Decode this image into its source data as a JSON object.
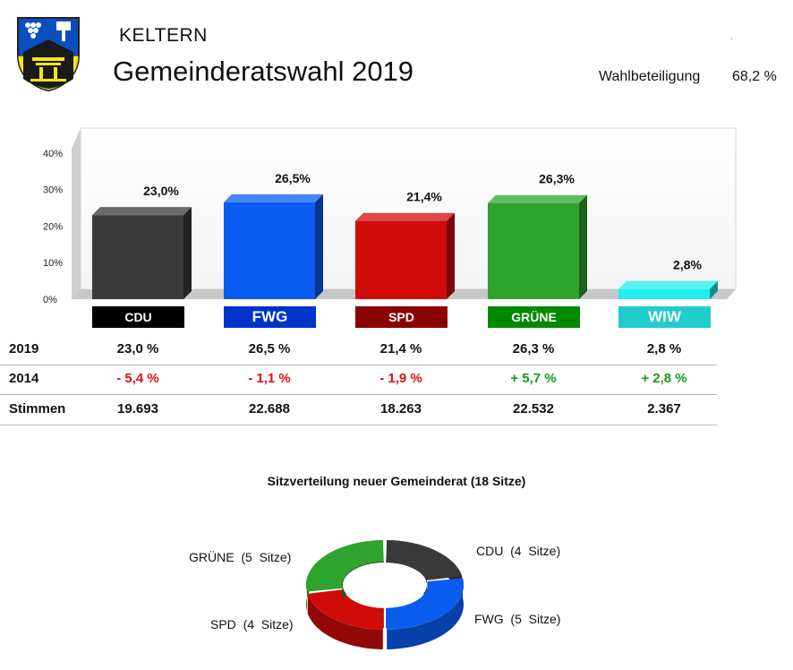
{
  "header": {
    "town": "KELTERN",
    "title": "Gemeinderatswahl 2019",
    "turnout_label": "Wahlbeteiligung",
    "turnout_value": "68,2 %",
    "dot": "."
  },
  "chart_data": [
    {
      "type": "bar",
      "categories": [
        "CDU",
        "FWG",
        "SPD",
        "GRÜNE",
        "WIW"
      ],
      "values": [
        23.0,
        26.5,
        21.4,
        26.3,
        2.8
      ],
      "value_labels": [
        "23,0%",
        "26,5%",
        "21,4%",
        "26,3%",
        "2,8%"
      ],
      "y_ticks": [
        "0%",
        "10%",
        "20%",
        "30%",
        "40%"
      ],
      "ylim": [
        0,
        40
      ],
      "colors": [
        "#3a3a3a",
        "#0a5cf0",
        "#d10a0a",
        "#2ea32e",
        "#22eeee"
      ],
      "label_colors": [
        "#000000",
        "#0033cc",
        "#8b0000",
        "#008a00",
        "#22cccc"
      ],
      "grid": false
    },
    {
      "type": "pie",
      "title": "Sitzverteilung neuer Gemeinderat  (18 Sitze)",
      "labels": [
        "CDU",
        "FWG",
        "SPD",
        "GRÜNE"
      ],
      "values": [
        4,
        5,
        4,
        5
      ],
      "slice_labels": [
        "CDU  (4  Sitze)",
        "FWG  (5  Sitze)",
        "SPD  (4  Sitze)",
        "GRÜNE  (5  Sitze)"
      ],
      "colors": [
        "#3a3a3a",
        "#0a5cf0",
        "#d10a0a",
        "#2ea32e"
      ]
    }
  ],
  "table": {
    "rows": [
      {
        "label": "2019",
        "cells": [
          "23,0 %",
          "26,5 %",
          "21,4 %",
          "26,3 %",
          "2,8 %"
        ],
        "color": "#111111"
      },
      {
        "label": "2014",
        "cells": [
          "- 5,4 %",
          "- 1,1 %",
          "- 1,9 %",
          "+ 5,7 %",
          "+ 2,8 %"
        ],
        "cell_colors": [
          "#dd1111",
          "#dd1111",
          "#dd1111",
          "#1a9a1a",
          "#1a9a1a"
        ]
      },
      {
        "label": "Stimmen",
        "cells": [
          "19.693",
          "22.688",
          "18.263",
          "22.532",
          "2.367"
        ],
        "color": "#111111"
      }
    ]
  }
}
